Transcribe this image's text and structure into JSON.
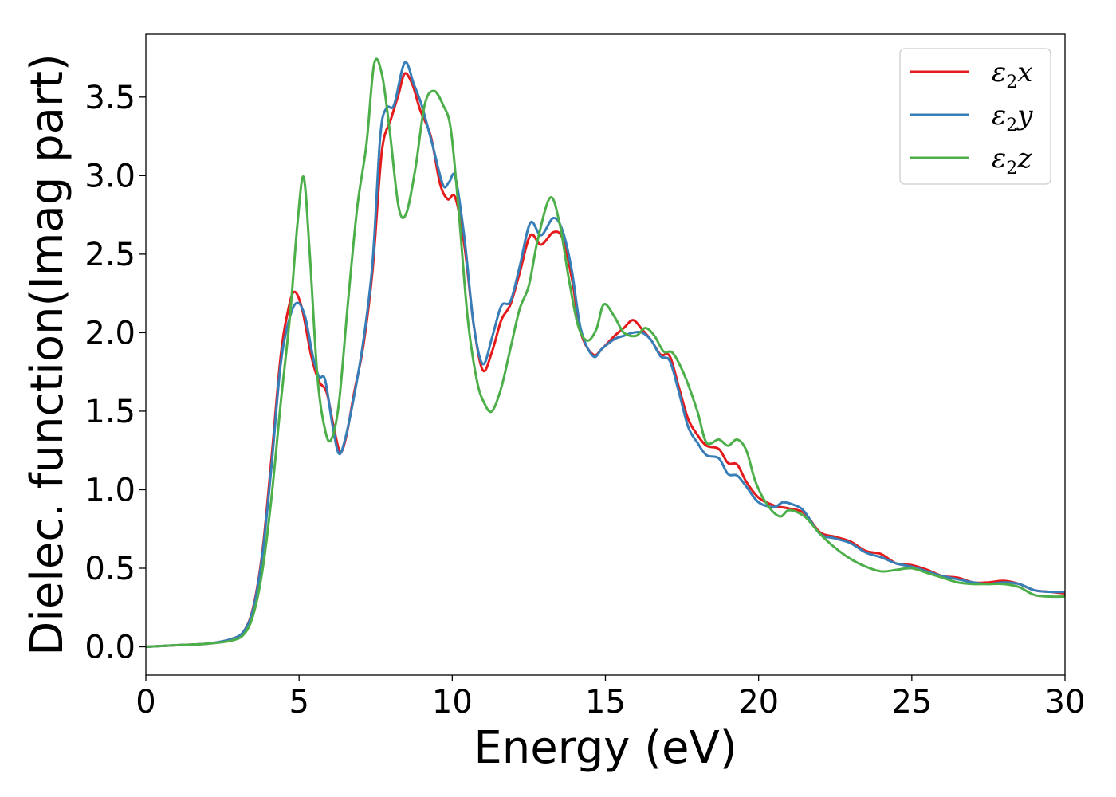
{
  "chart_data": {
    "type": "line",
    "xlabel": "Energy (eV)",
    "ylabel": "Dielec. function(Imag part)",
    "xlim": [
      0,
      30
    ],
    "ylim": [
      -0.18,
      3.9
    ],
    "xticks": [
      0,
      5,
      10,
      15,
      20,
      25,
      30
    ],
    "yticks": [
      0.0,
      0.5,
      1.0,
      1.5,
      2.0,
      2.5,
      3.0,
      3.5
    ],
    "grid": false,
    "legend_position": "top-right",
    "series": [
      {
        "name": "ε2x",
        "legend": {
          "base": "ε",
          "sub": "2",
          "var": "x"
        },
        "color": "#e41a1c",
        "points": [
          [
            0,
            0.0
          ],
          [
            1,
            0.01
          ],
          [
            2,
            0.02
          ],
          [
            2.8,
            0.05
          ],
          [
            3.2,
            0.1
          ],
          [
            3.5,
            0.25
          ],
          [
            3.8,
            0.6
          ],
          [
            4.1,
            1.2
          ],
          [
            4.4,
            1.85
          ],
          [
            4.65,
            2.15
          ],
          [
            4.85,
            2.26
          ],
          [
            5.1,
            2.15
          ],
          [
            5.4,
            1.85
          ],
          [
            5.65,
            1.69
          ],
          [
            5.9,
            1.62
          ],
          [
            6.15,
            1.38
          ],
          [
            6.35,
            1.24
          ],
          [
            6.55,
            1.35
          ],
          [
            6.8,
            1.62
          ],
          [
            7.1,
            1.92
          ],
          [
            7.4,
            2.4
          ],
          [
            7.7,
            3.15
          ],
          [
            8.0,
            3.36
          ],
          [
            8.25,
            3.52
          ],
          [
            8.45,
            3.65
          ],
          [
            8.7,
            3.58
          ],
          [
            8.95,
            3.42
          ],
          [
            9.3,
            3.25
          ],
          [
            9.6,
            2.95
          ],
          [
            9.85,
            2.85
          ],
          [
            10.1,
            2.86
          ],
          [
            10.4,
            2.55
          ],
          [
            10.7,
            2.05
          ],
          [
            11.0,
            1.76
          ],
          [
            11.3,
            1.88
          ],
          [
            11.6,
            2.08
          ],
          [
            11.9,
            2.18
          ],
          [
            12.2,
            2.38
          ],
          [
            12.55,
            2.62
          ],
          [
            12.9,
            2.56
          ],
          [
            13.3,
            2.64
          ],
          [
            13.6,
            2.6
          ],
          [
            13.9,
            2.35
          ],
          [
            14.2,
            2.0
          ],
          [
            14.6,
            1.86
          ],
          [
            14.9,
            1.9
          ],
          [
            15.3,
            1.98
          ],
          [
            15.6,
            2.03
          ],
          [
            15.9,
            2.08
          ],
          [
            16.2,
            2.02
          ],
          [
            16.5,
            1.95
          ],
          [
            16.8,
            1.86
          ],
          [
            17.1,
            1.85
          ],
          [
            17.4,
            1.65
          ],
          [
            17.7,
            1.45
          ],
          [
            18.0,
            1.35
          ],
          [
            18.3,
            1.28
          ],
          [
            18.7,
            1.26
          ],
          [
            19.0,
            1.17
          ],
          [
            19.3,
            1.16
          ],
          [
            19.6,
            1.05
          ],
          [
            20.0,
            0.95
          ],
          [
            20.5,
            0.9
          ],
          [
            21.0,
            0.88
          ],
          [
            21.5,
            0.85
          ],
          [
            22.0,
            0.73
          ],
          [
            22.5,
            0.7
          ],
          [
            23.0,
            0.67
          ],
          [
            23.5,
            0.61
          ],
          [
            24.0,
            0.59
          ],
          [
            24.5,
            0.53
          ],
          [
            25.0,
            0.52
          ],
          [
            25.5,
            0.49
          ],
          [
            26.0,
            0.45
          ],
          [
            26.5,
            0.44
          ],
          [
            27.0,
            0.41
          ],
          [
            27.5,
            0.41
          ],
          [
            28.0,
            0.42
          ],
          [
            28.5,
            0.4
          ],
          [
            29.0,
            0.36
          ],
          [
            29.5,
            0.35
          ],
          [
            30.0,
            0.34
          ]
        ]
      },
      {
        "name": "ε2y",
        "legend": {
          "base": "ε",
          "sub": "2",
          "var": "y"
        },
        "color": "#377eb8",
        "points": [
          [
            0,
            0.0
          ],
          [
            1,
            0.01
          ],
          [
            2,
            0.02
          ],
          [
            2.8,
            0.05
          ],
          [
            3.2,
            0.1
          ],
          [
            3.5,
            0.24
          ],
          [
            3.8,
            0.58
          ],
          [
            4.1,
            1.15
          ],
          [
            4.4,
            1.8
          ],
          [
            4.7,
            2.1
          ],
          [
            4.95,
            2.19
          ],
          [
            5.2,
            2.1
          ],
          [
            5.45,
            1.85
          ],
          [
            5.65,
            1.72
          ],
          [
            5.85,
            1.7
          ],
          [
            6.1,
            1.4
          ],
          [
            6.3,
            1.23
          ],
          [
            6.5,
            1.32
          ],
          [
            6.8,
            1.6
          ],
          [
            7.1,
            1.95
          ],
          [
            7.4,
            2.45
          ],
          [
            7.65,
            3.25
          ],
          [
            7.85,
            3.43
          ],
          [
            8.1,
            3.45
          ],
          [
            8.45,
            3.72
          ],
          [
            8.75,
            3.58
          ],
          [
            9.0,
            3.45
          ],
          [
            9.35,
            3.2
          ],
          [
            9.7,
            2.94
          ],
          [
            9.9,
            2.96
          ],
          [
            10.1,
            2.99
          ],
          [
            10.4,
            2.6
          ],
          [
            10.7,
            2.05
          ],
          [
            11.0,
            1.8
          ],
          [
            11.3,
            1.97
          ],
          [
            11.6,
            2.17
          ],
          [
            11.9,
            2.2
          ],
          [
            12.2,
            2.42
          ],
          [
            12.55,
            2.7
          ],
          [
            12.9,
            2.62
          ],
          [
            13.3,
            2.73
          ],
          [
            13.6,
            2.65
          ],
          [
            13.9,
            2.4
          ],
          [
            14.2,
            2.02
          ],
          [
            14.6,
            1.85
          ],
          [
            14.9,
            1.9
          ],
          [
            15.3,
            1.96
          ],
          [
            15.6,
            1.98
          ],
          [
            15.9,
            2.0
          ],
          [
            16.2,
            2.0
          ],
          [
            16.5,
            1.95
          ],
          [
            16.8,
            1.85
          ],
          [
            17.1,
            1.82
          ],
          [
            17.4,
            1.62
          ],
          [
            17.7,
            1.4
          ],
          [
            18.0,
            1.3
          ],
          [
            18.3,
            1.22
          ],
          [
            18.7,
            1.2
          ],
          [
            19.0,
            1.1
          ],
          [
            19.3,
            1.09
          ],
          [
            19.6,
            1.02
          ],
          [
            20.0,
            0.92
          ],
          [
            20.5,
            0.89
          ],
          [
            20.8,
            0.92
          ],
          [
            21.2,
            0.9
          ],
          [
            21.5,
            0.86
          ],
          [
            22.0,
            0.72
          ],
          [
            22.5,
            0.69
          ],
          [
            23.0,
            0.66
          ],
          [
            23.5,
            0.6
          ],
          [
            24.0,
            0.57
          ],
          [
            24.5,
            0.53
          ],
          [
            25.0,
            0.51
          ],
          [
            25.5,
            0.48
          ],
          [
            26.0,
            0.45
          ],
          [
            26.5,
            0.43
          ],
          [
            27.0,
            0.41
          ],
          [
            27.5,
            0.4
          ],
          [
            28.0,
            0.41
          ],
          [
            28.5,
            0.4
          ],
          [
            29.0,
            0.36
          ],
          [
            29.5,
            0.35
          ],
          [
            30.0,
            0.35
          ]
        ]
      },
      {
        "name": "ε2z",
        "legend": {
          "base": "ε",
          "sub": "2",
          "var": "z"
        },
        "color": "#4daf4a",
        "points": [
          [
            0,
            0.0
          ],
          [
            1,
            0.01
          ],
          [
            2,
            0.02
          ],
          [
            2.8,
            0.04
          ],
          [
            3.2,
            0.08
          ],
          [
            3.5,
            0.2
          ],
          [
            3.8,
            0.48
          ],
          [
            4.1,
            0.95
          ],
          [
            4.4,
            1.55
          ],
          [
            4.7,
            2.1
          ],
          [
            4.95,
            2.7
          ],
          [
            5.15,
            2.99
          ],
          [
            5.35,
            2.5
          ],
          [
            5.6,
            1.72
          ],
          [
            5.85,
            1.38
          ],
          [
            6.05,
            1.32
          ],
          [
            6.3,
            1.55
          ],
          [
            6.6,
            2.2
          ],
          [
            6.9,
            2.8
          ],
          [
            7.2,
            3.2
          ],
          [
            7.45,
            3.71
          ],
          [
            7.7,
            3.65
          ],
          [
            7.95,
            3.3
          ],
          [
            8.25,
            2.8
          ],
          [
            8.5,
            2.76
          ],
          [
            8.8,
            3.05
          ],
          [
            9.1,
            3.45
          ],
          [
            9.4,
            3.54
          ],
          [
            9.7,
            3.45
          ],
          [
            9.95,
            3.3
          ],
          [
            10.2,
            2.8
          ],
          [
            10.5,
            2.1
          ],
          [
            10.8,
            1.7
          ],
          [
            11.05,
            1.55
          ],
          [
            11.3,
            1.5
          ],
          [
            11.6,
            1.65
          ],
          [
            11.9,
            1.9
          ],
          [
            12.2,
            2.15
          ],
          [
            12.5,
            2.3
          ],
          [
            12.8,
            2.6
          ],
          [
            13.2,
            2.86
          ],
          [
            13.5,
            2.7
          ],
          [
            13.8,
            2.35
          ],
          [
            14.1,
            2.05
          ],
          [
            14.4,
            1.95
          ],
          [
            14.7,
            2.02
          ],
          [
            14.95,
            2.18
          ],
          [
            15.3,
            2.1
          ],
          [
            15.6,
            2.0
          ],
          [
            16.0,
            1.98
          ],
          [
            16.3,
            2.03
          ],
          [
            16.6,
            1.98
          ],
          [
            16.9,
            1.88
          ],
          [
            17.2,
            1.87
          ],
          [
            17.6,
            1.72
          ],
          [
            18.0,
            1.5
          ],
          [
            18.3,
            1.3
          ],
          [
            18.7,
            1.32
          ],
          [
            19.0,
            1.28
          ],
          [
            19.3,
            1.32
          ],
          [
            19.6,
            1.25
          ],
          [
            19.9,
            1.05
          ],
          [
            20.3,
            0.9
          ],
          [
            20.7,
            0.83
          ],
          [
            21.0,
            0.87
          ],
          [
            21.5,
            0.83
          ],
          [
            22.0,
            0.72
          ],
          [
            22.5,
            0.63
          ],
          [
            23.0,
            0.56
          ],
          [
            23.5,
            0.51
          ],
          [
            24.0,
            0.48
          ],
          [
            24.5,
            0.49
          ],
          [
            25.0,
            0.5
          ],
          [
            25.5,
            0.47
          ],
          [
            26.0,
            0.44
          ],
          [
            26.5,
            0.41
          ],
          [
            27.0,
            0.4
          ],
          [
            27.5,
            0.4
          ],
          [
            28.0,
            0.4
          ],
          [
            28.5,
            0.38
          ],
          [
            29.0,
            0.33
          ],
          [
            29.5,
            0.32
          ],
          [
            30.0,
            0.32
          ]
        ]
      }
    ]
  }
}
